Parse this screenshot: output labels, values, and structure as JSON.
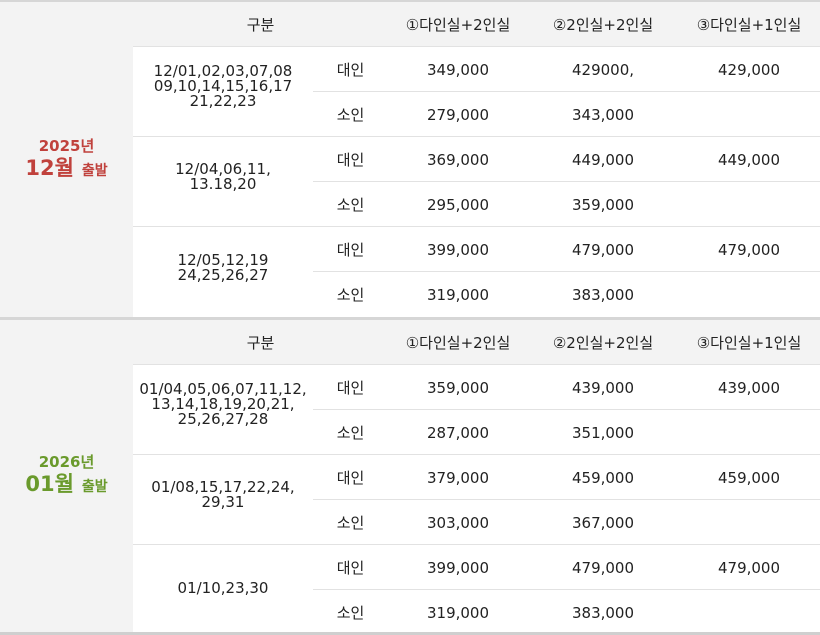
{
  "sections": [
    {
      "year": "2025년",
      "month": "12월",
      "departure": "출발",
      "header": {
        "gubun": "구분",
        "col1": "①다인실+2인실",
        "col2": "②2인실+2인실",
        "col3": "③다인실+1인실"
      },
      "groups": [
        {
          "dates": [
            "12/01,02,03,07,08",
            "09,10,14,15,16,17",
            "21,22,23"
          ],
          "adult": {
            "type": "대인",
            "p1": "349,000",
            "p2": "429000,",
            "p3": "429,000"
          },
          "child": {
            "type": "소인",
            "p1": "279,000",
            "p2": "343,000",
            "p3": ""
          }
        },
        {
          "dates": [
            "12/04,06,11,",
            "13.18,20"
          ],
          "adult": {
            "type": "대인",
            "p1": "369,000",
            "p2": "449,000",
            "p3": "449,000"
          },
          "child": {
            "type": "소인",
            "p1": "295,000",
            "p2": "359,000",
            "p3": ""
          }
        },
        {
          "dates": [
            "12/05,12,19",
            "24,25,26,27"
          ],
          "adult": {
            "type": "대인",
            "p1": "399,000",
            "p2": "479,000",
            "p3": "479,000"
          },
          "child": {
            "type": "소인",
            "p1": "319,000",
            "p2": "383,000",
            "p3": ""
          }
        }
      ]
    },
    {
      "year": "2026년",
      "month": "01월",
      "departure": "출발",
      "header": {
        "gubun": "구분",
        "col1": "①다인실+2인실",
        "col2": "②2인실+2인실",
        "col3": "③다인실+1인실"
      },
      "groups": [
        {
          "dates": [
            "01/04,05,06,07,11,12,",
            "13,14,18,19,20,21,",
            "25,26,27,28"
          ],
          "adult": {
            "type": "대인",
            "p1": "359,000",
            "p2": "439,000",
            "p3": "439,000"
          },
          "child": {
            "type": "소인",
            "p1": "287,000",
            "p2": "351,000",
            "p3": ""
          }
        },
        {
          "dates": [
            "01/08,15,17,22,24,",
            "29,31"
          ],
          "adult": {
            "type": "대인",
            "p1": "379,000",
            "p2": "459,000",
            "p3": "459,000"
          },
          "child": {
            "type": "소인",
            "p1": "303,000",
            "p2": "367,000",
            "p3": ""
          }
        },
        {
          "dates": [
            "01/10,23,30"
          ],
          "adult": {
            "type": "대인",
            "p1": "399,000",
            "p2": "479,000",
            "p3": "479,000"
          },
          "child": {
            "type": "소인",
            "p1": "319,000",
            "p2": "383,000",
            "p3": ""
          }
        }
      ]
    }
  ],
  "colors": {
    "section1_accent": "#c0413c",
    "section2_accent": "#6a9a2c"
  }
}
